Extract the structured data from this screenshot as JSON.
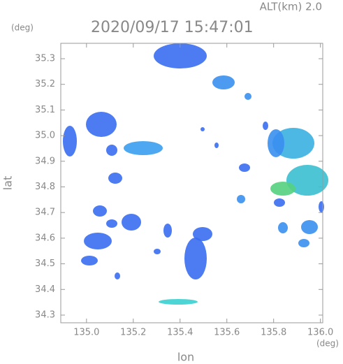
{
  "header": {
    "altitude": "ALT(km) 2.0",
    "timestamp": "2020/09/17 15:47:01"
  },
  "axes": {
    "xlabel": "lon",
    "ylabel": "lat",
    "xunit": "(deg)",
    "yunit": "(deg)",
    "xlim": [
      134.89,
      136.01
    ],
    "ylim": [
      34.27,
      35.36
    ],
    "xticks": [
      {
        "value": 135,
        "label": "135.0"
      },
      {
        "value": 135.2,
        "label": "135.2"
      },
      {
        "value": 135.4,
        "label": "135.4"
      },
      {
        "value": 135.6,
        "label": "135.6"
      },
      {
        "value": 135.8,
        "label": "135.8"
      },
      {
        "value": 136,
        "label": "136.0"
      }
    ],
    "yticks": [
      {
        "value": 34.3,
        "label": "34.3"
      },
      {
        "value": 34.4,
        "label": "34.4"
      },
      {
        "value": 34.5,
        "label": "34.5"
      },
      {
        "value": 34.6,
        "label": "34.6"
      },
      {
        "value": 34.7,
        "label": "34.7"
      },
      {
        "value": 34.8,
        "label": "34.8"
      },
      {
        "value": 34.9,
        "label": "34.9"
      },
      {
        "value": 35,
        "label": "35.0"
      },
      {
        "value": 35.1,
        "label": "35.1"
      },
      {
        "value": 35.2,
        "label": "35.2"
      },
      {
        "value": 35.3,
        "label": "35.3"
      }
    ]
  }
}
